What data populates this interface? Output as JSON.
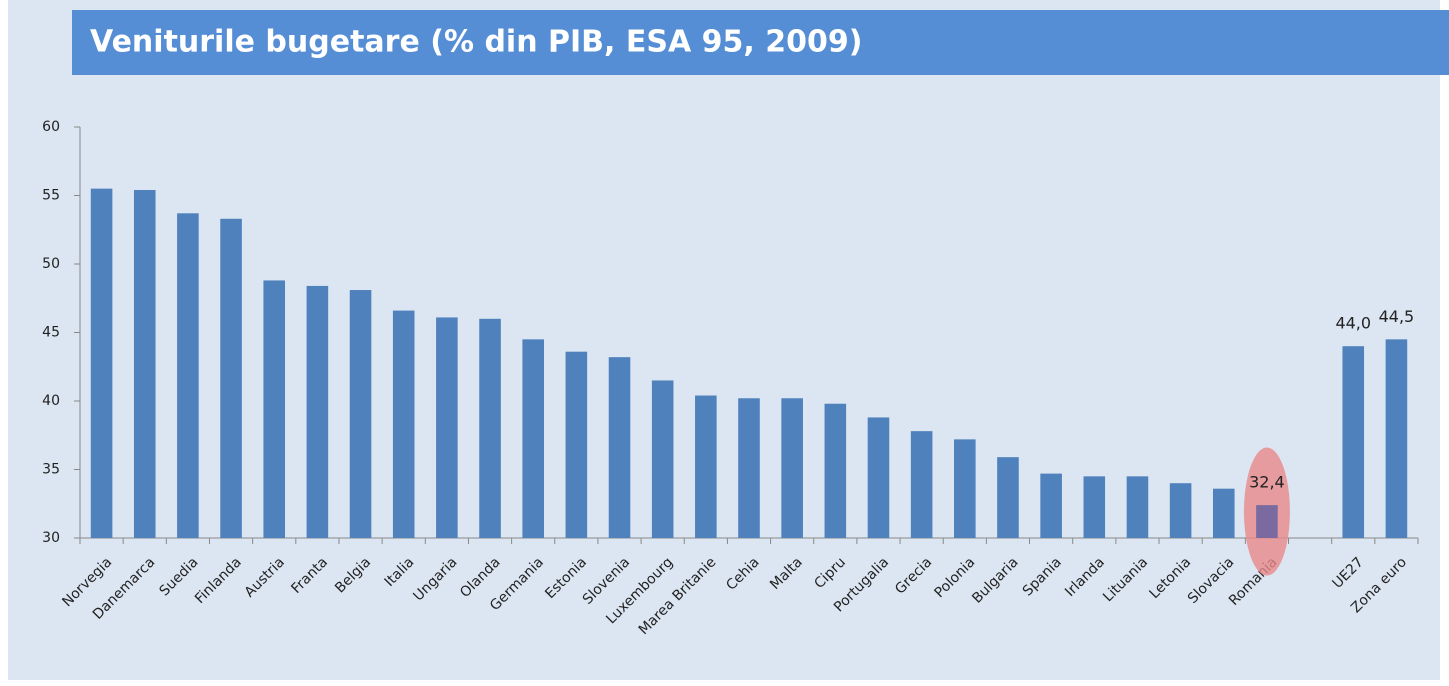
{
  "chart_data": {
    "type": "bar",
    "title": "Veniturile bugetare (% din PIB, ESA 95, 2009)",
    "categories": [
      "Norvegia",
      "Danemarca",
      "Suedia",
      "Finlanda",
      "Austria",
      "Franta",
      "Belgia",
      "Italia",
      "Ungaria",
      "Olanda",
      "Germania",
      "Estonia",
      "Slovenia",
      "Luxembourg",
      "Marea Britanie",
      "Cehia",
      "Malta",
      "Cipru",
      "Portugalia",
      "Grecia",
      "Polonia",
      "Bulgaria",
      "Spania",
      "Irlanda",
      "Lituania",
      "Letonia",
      "Slovacia",
      "Romania",
      null,
      "UE27",
      "Zona euro"
    ],
    "values": [
      55.5,
      55.4,
      53.7,
      53.3,
      48.8,
      48.4,
      48.1,
      46.6,
      46.1,
      46.0,
      44.5,
      43.6,
      43.2,
      41.5,
      40.4,
      40.2,
      40.2,
      39.8,
      38.8,
      37.8,
      37.2,
      35.9,
      34.7,
      34.5,
      34.5,
      34.0,
      33.6,
      32.4,
      null,
      44.0,
      44.5
    ],
    "value_labels": [
      null,
      null,
      null,
      null,
      null,
      null,
      null,
      null,
      null,
      null,
      null,
      null,
      null,
      null,
      null,
      null,
      null,
      null,
      null,
      null,
      null,
      null,
      null,
      null,
      null,
      null,
      null,
      "32,4",
      null,
      "44,0",
      "44,5"
    ],
    "color": "#4f81bd",
    "highlight_index": 27,
    "highlight_color": "#7b6aa0",
    "highlight_ellipse_color": "#e88a8a",
    "ylim": [
      30,
      60
    ],
    "yticks": [
      30,
      35,
      40,
      45,
      50,
      55,
      60
    ]
  }
}
